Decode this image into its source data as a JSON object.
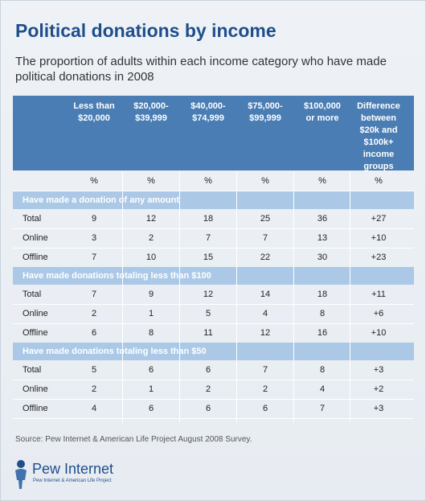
{
  "title": "Political donations by income",
  "subtitle": "The proportion of adults within each income category who have made political donations in 2008",
  "source": "Source:  Pew Internet & American Life Project August 2008 Survey.",
  "logo": {
    "name": "Pew Internet",
    "tagline": "Pew Internet & American Life Project",
    "icon": "pew-figure-icon"
  },
  "colors": {
    "title": "#1f4e8c",
    "header_bg": "#4a7db4",
    "section_bg": "#abc9e6",
    "background": "#e9eef4"
  },
  "chart_data": {
    "type": "table",
    "columns": [
      "Less than\n$20,000",
      "$20,000-\n$39,999",
      "$40,000-\n$74,999",
      "$75,000-\n$99,999",
      "$100,000\nor more",
      "Difference\nbetween\n$20k and\n$100k+\nincome\ngroups"
    ],
    "units": [
      "%",
      "%",
      "%",
      "%",
      "%",
      "%"
    ],
    "sections": [
      {
        "label": "Have made a donation of any amount",
        "rows": [
          {
            "label": "Total",
            "values": [
              "9",
              "12",
              "18",
              "25",
              "36",
              "+27"
            ]
          },
          {
            "label": "Online",
            "values": [
              "3",
              "2",
              "7",
              "7",
              "13",
              "+10"
            ]
          },
          {
            "label": "Offline",
            "values": [
              "7",
              "10",
              "15",
              "22",
              "30",
              "+23"
            ]
          }
        ]
      },
      {
        "label": "Have made donations totaling less than $100",
        "rows": [
          {
            "label": "Total",
            "values": [
              "7",
              "9",
              "12",
              "14",
              "18",
              "+11"
            ]
          },
          {
            "label": "Online",
            "values": [
              "2",
              "1",
              "5",
              "4",
              "8",
              "+6"
            ]
          },
          {
            "label": "Offline",
            "values": [
              "6",
              "8",
              "11",
              "12",
              "16",
              "+10"
            ]
          }
        ]
      },
      {
        "label": "Have made donations totaling less than $50",
        "rows": [
          {
            "label": "Total",
            "values": [
              "5",
              "6",
              "6",
              "7",
              "8",
              "+3"
            ]
          },
          {
            "label": "Online",
            "values": [
              "2",
              "1",
              "2",
              "2",
              "4",
              "+2"
            ]
          },
          {
            "label": "Offline",
            "values": [
              "4",
              "6",
              "6",
              "6",
              "7",
              "+3"
            ]
          }
        ]
      }
    ]
  }
}
